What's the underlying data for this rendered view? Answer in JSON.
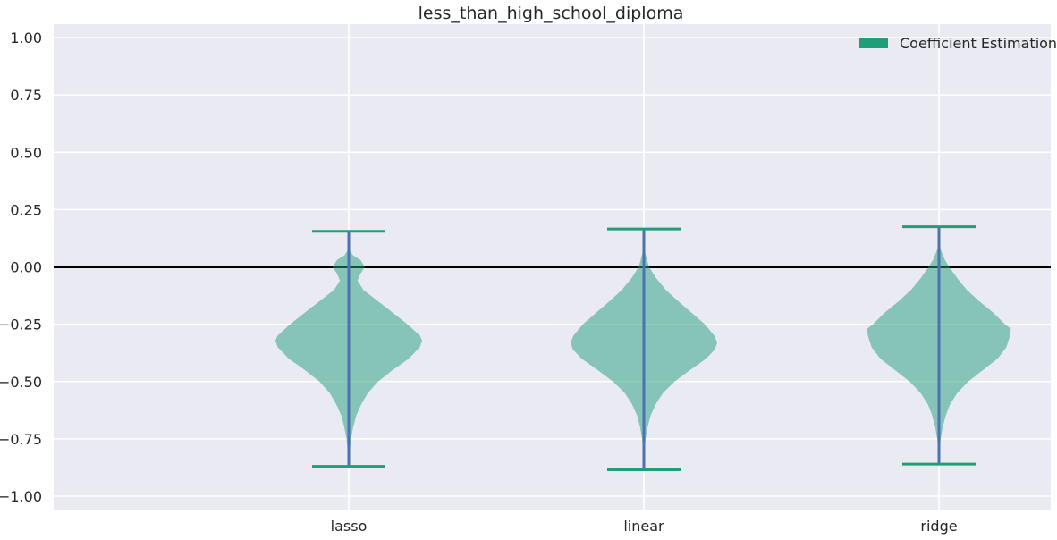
{
  "chart_data": {
    "type": "violin",
    "title": "less_than_high_school_diploma",
    "xlabel": "",
    "ylabel": "",
    "categories": [
      "lasso",
      "linear",
      "ridge"
    ],
    "ylim": [
      -1.05,
      1.05
    ],
    "yticks": [
      1.0,
      0.75,
      0.5,
      0.25,
      0.0,
      -0.25,
      -0.5,
      -0.75,
      -1.0
    ],
    "ytick_labels": [
      "1.00",
      "0.75",
      "0.50",
      "0.25",
      "0.00",
      "−0.25",
      "−0.50",
      "−0.75",
      "−1.00"
    ],
    "reference_line_y": 0.0,
    "grid": true,
    "legend": {
      "position": "top-right",
      "entries": [
        {
          "label": "Coefficient Estimation",
          "color": "#1f9e79"
        }
      ]
    },
    "series": [
      {
        "name": "Coefficient Estimation",
        "violins": [
          {
            "category": "lasso",
            "min": -0.87,
            "max": 0.155,
            "profile": [
              [
                0.155,
                0
              ],
              [
                0.08,
                0
              ],
              [
                0.05,
                0.06
              ],
              [
                0.03,
                0.16
              ],
              [
                0.0,
                0.22
              ],
              [
                -0.03,
                0.16
              ],
              [
                -0.06,
                0.12
              ],
              [
                -0.1,
                0.2
              ],
              [
                -0.15,
                0.4
              ],
              [
                -0.2,
                0.6
              ],
              [
                -0.25,
                0.8
              ],
              [
                -0.3,
                0.97
              ],
              [
                -0.32,
                1.0
              ],
              [
                -0.35,
                0.97
              ],
              [
                -0.4,
                0.82
              ],
              [
                -0.45,
                0.6
              ],
              [
                -0.5,
                0.4
              ],
              [
                -0.55,
                0.26
              ],
              [
                -0.6,
                0.17
              ],
              [
                -0.65,
                0.1
              ],
              [
                -0.7,
                0.06
              ],
              [
                -0.75,
                0.03
              ],
              [
                -0.8,
                0.015
              ],
              [
                -0.87,
                0
              ]
            ]
          },
          {
            "category": "linear",
            "min": -0.885,
            "max": 0.165,
            "profile": [
              [
                0.165,
                0
              ],
              [
                0.1,
                0
              ],
              [
                0.06,
                0.02
              ],
              [
                0.0,
                0.07
              ],
              [
                -0.05,
                0.17
              ],
              [
                -0.1,
                0.3
              ],
              [
                -0.15,
                0.47
              ],
              [
                -0.2,
                0.65
              ],
              [
                -0.25,
                0.83
              ],
              [
                -0.3,
                0.96
              ],
              [
                -0.33,
                1.0
              ],
              [
                -0.36,
                0.97
              ],
              [
                -0.4,
                0.85
              ],
              [
                -0.45,
                0.63
              ],
              [
                -0.5,
                0.42
              ],
              [
                -0.55,
                0.26
              ],
              [
                -0.6,
                0.16
              ],
              [
                -0.65,
                0.09
              ],
              [
                -0.7,
                0.05
              ],
              [
                -0.75,
                0.025
              ],
              [
                -0.8,
                0.01
              ],
              [
                -0.885,
                0
              ]
            ]
          },
          {
            "category": "ridge",
            "min": -0.86,
            "max": 0.175,
            "profile": [
              [
                0.175,
                0
              ],
              [
                0.1,
                0
              ],
              [
                0.07,
                0.03
              ],
              [
                0.03,
                0.08
              ],
              [
                0.0,
                0.14
              ],
              [
                -0.05,
                0.25
              ],
              [
                -0.1,
                0.38
              ],
              [
                -0.15,
                0.55
              ],
              [
                -0.2,
                0.74
              ],
              [
                -0.25,
                0.9
              ],
              [
                -0.27,
                0.98
              ],
              [
                -0.3,
                0.97
              ],
              [
                -0.35,
                0.92
              ],
              [
                -0.4,
                0.8
              ],
              [
                -0.45,
                0.6
              ],
              [
                -0.5,
                0.4
              ],
              [
                -0.55,
                0.25
              ],
              [
                -0.6,
                0.15
              ],
              [
                -0.65,
                0.09
              ],
              [
                -0.7,
                0.05
              ],
              [
                -0.75,
                0.025
              ],
              [
                -0.8,
                0.01
              ],
              [
                -0.86,
                0
              ]
            ]
          }
        ]
      }
    ]
  }
}
